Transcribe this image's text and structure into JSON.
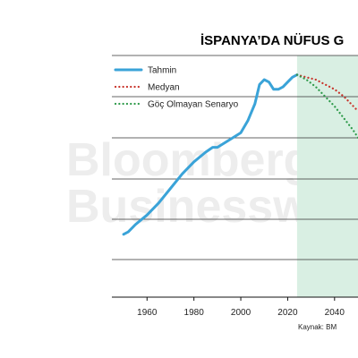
{
  "chart_data": {
    "type": "line",
    "title": "İSPANYA’DA NÜFUS G",
    "xlabel": "",
    "ylabel": "",
    "source": "Kaynak: BM",
    "watermark": [
      "Bloomberg",
      "Businessweek"
    ],
    "x_ticks": [
      "1960",
      "1980",
      "2000",
      "2020",
      "2040"
    ],
    "xlim": [
      1945,
      2050
    ],
    "ylim": [
      0,
      1
    ],
    "shaded_region": {
      "from": 2024,
      "to": 2050,
      "color": "#d9efe3"
    },
    "legend": [
      {
        "name": "Tahmin",
        "color": "#3aa3d8",
        "style": "solid"
      },
      {
        "name": "Medyan",
        "color": "#c8342b",
        "style": "dotted"
      },
      {
        "name": "Göç Olmayan Senaryo",
        "color": "#2e9a4a",
        "style": "dotted"
      }
    ],
    "series": [
      {
        "name": "Tahmin",
        "color": "#3aa3d8",
        "style": "solid",
        "x": [
          1950,
          1952,
          1955,
          1960,
          1965,
          1970,
          1975,
          1980,
          1985,
          1988,
          1990,
          1995,
          2000,
          2003,
          2006,
          2008,
          2010,
          2012,
          2014,
          2016,
          2018,
          2020,
          2022,
          2024
        ],
        "y": [
          0.26,
          0.27,
          0.3,
          0.34,
          0.39,
          0.45,
          0.51,
          0.56,
          0.6,
          0.62,
          0.62,
          0.65,
          0.68,
          0.73,
          0.8,
          0.88,
          0.9,
          0.89,
          0.86,
          0.86,
          0.87,
          0.89,
          0.91,
          0.92
        ]
      },
      {
        "name": "Medyan",
        "color": "#c8342b",
        "style": "dotted",
        "x": [
          2024,
          2028,
          2032,
          2036,
          2040,
          2044,
          2048,
          2050
        ],
        "y": [
          0.92,
          0.91,
          0.9,
          0.88,
          0.86,
          0.83,
          0.79,
          0.77
        ]
      },
      {
        "name": "Göç Olmayan Senaryo",
        "color": "#2e9a4a",
        "style": "dotted",
        "x": [
          2024,
          2028,
          2032,
          2036,
          2040,
          2044,
          2048,
          2050
        ],
        "y": [
          0.92,
          0.9,
          0.87,
          0.83,
          0.79,
          0.74,
          0.69,
          0.66
        ]
      }
    ],
    "grid": true
  }
}
